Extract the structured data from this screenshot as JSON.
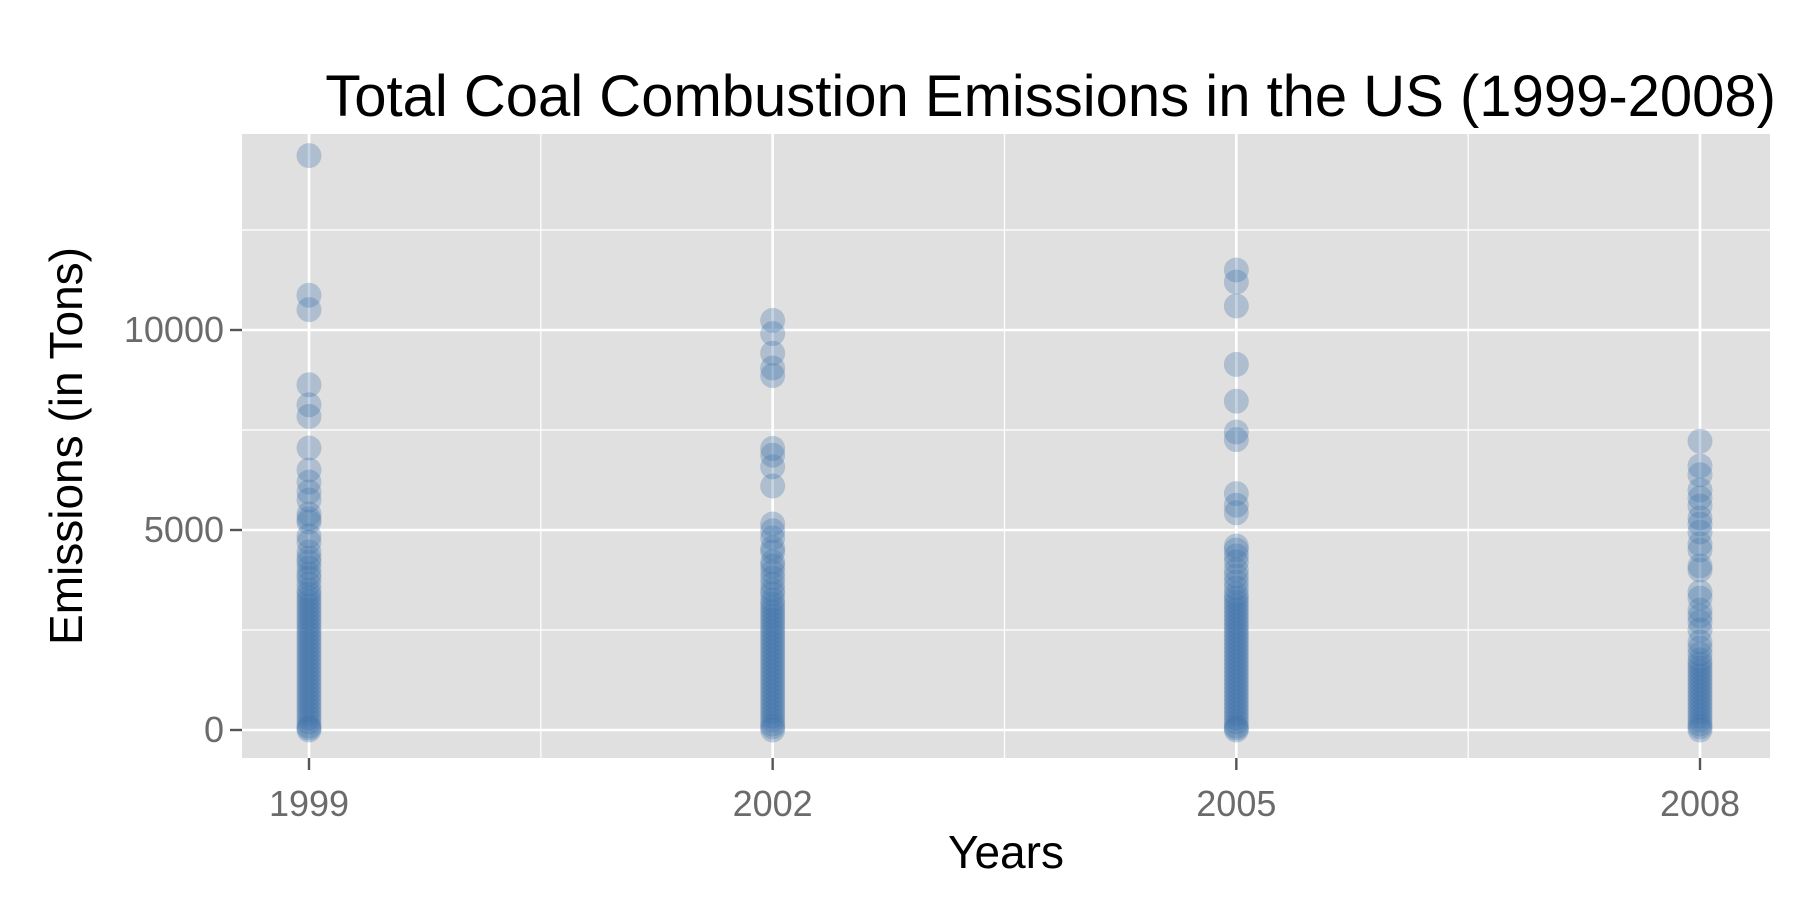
{
  "chart_data": {
    "type": "scatter",
    "title": "Total Coal Combustion Emissions in the US (1999-2008)",
    "xlabel": "Years",
    "ylabel": "Emissions (in Tons)",
    "x_ticks": [
      "1999",
      "2002",
      "2005",
      "2008"
    ],
    "y_ticks": [
      0,
      5000,
      10000
    ],
    "ylim": [
      -700,
      14900
    ],
    "grid": true,
    "point_color": "#3A6FA8",
    "point_opacity": 0.3,
    "panel_background": "#E0E0E0",
    "grid_color": "#FFFFFF",
    "series": [
      {
        "x": "1999",
        "values": [
          14360,
          10870,
          10510,
          8630,
          8130,
          7840,
          7050,
          6500,
          6200,
          5950,
          5750,
          5400,
          5280,
          5200,
          4850,
          4700,
          4450,
          4300,
          4200,
          4050,
          3900,
          3800,
          3650,
          3500,
          3400,
          3300,
          3200,
          3100,
          3000,
          2900,
          2800,
          2700,
          2600,
          2500,
          2400,
          2300,
          2200,
          2100,
          2000,
          1900,
          1800,
          1700,
          1600,
          1500,
          1400,
          1300,
          1200,
          1100,
          1000,
          900,
          800,
          700,
          600,
          500,
          400,
          300,
          200,
          100,
          50,
          0
        ]
      },
      {
        "x": "2002",
        "values": [
          10240,
          9910,
          9420,
          9050,
          8860,
          7040,
          6870,
          6580,
          6100,
          5150,
          4980,
          4800,
          4550,
          4450,
          4200,
          4100,
          3950,
          3800,
          3650,
          3500,
          3400,
          3250,
          3150,
          3050,
          2950,
          2850,
          2750,
          2650,
          2550,
          2450,
          2350,
          2250,
          2150,
          2050,
          1950,
          1850,
          1750,
          1650,
          1550,
          1450,
          1350,
          1250,
          1150,
          1050,
          950,
          850,
          750,
          650,
          550,
          450,
          350,
          250,
          150,
          80,
          0
        ]
      },
      {
        "x": "2005",
        "values": [
          11500,
          11200,
          10600,
          9140,
          8220,
          7450,
          7260,
          5910,
          5620,
          5430,
          4600,
          4500,
          4350,
          4200,
          4000,
          3850,
          3700,
          3550,
          3400,
          3300,
          3200,
          3100,
          3000,
          2900,
          2800,
          2700,
          2600,
          2500,
          2400,
          2300,
          2200,
          2100,
          2000,
          1900,
          1800,
          1700,
          1600,
          1500,
          1400,
          1300,
          1200,
          1100,
          1000,
          900,
          800,
          700,
          600,
          500,
          400,
          300,
          200,
          100,
          50,
          0
        ]
      },
      {
        "x": "2008",
        "values": [
          7220,
          6600,
          6380,
          6000,
          5800,
          5600,
          5300,
          5150,
          4950,
          4650,
          4500,
          4100,
          4000,
          3450,
          3300,
          3000,
          2850,
          2700,
          2500,
          2200,
          2050,
          1900,
          1750,
          1650,
          1550,
          1450,
          1350,
          1250,
          1150,
          1050,
          950,
          850,
          750,
          650,
          550,
          450,
          350,
          250,
          150,
          80,
          0
        ]
      }
    ]
  }
}
